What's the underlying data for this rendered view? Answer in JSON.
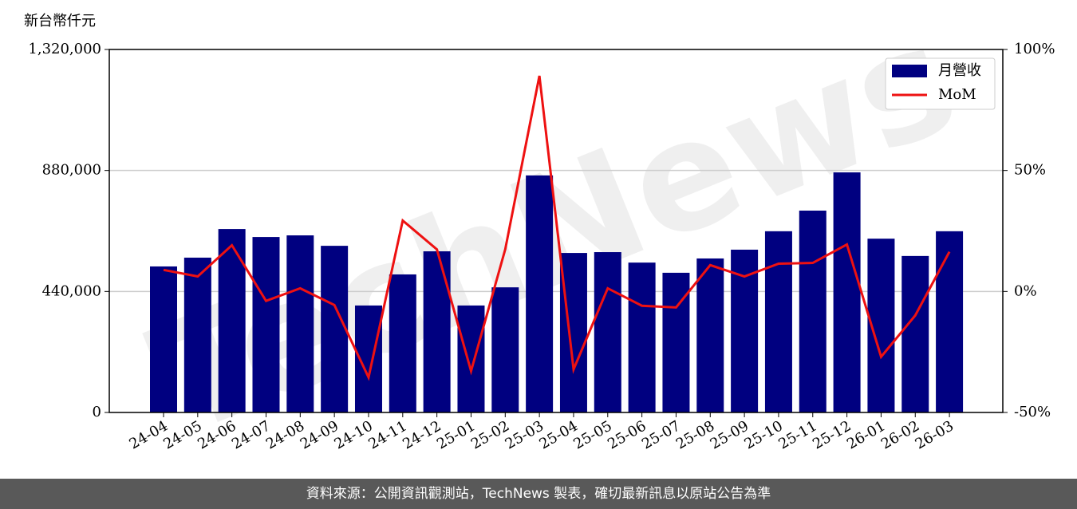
{
  "chart_data": {
    "type": "bar",
    "y_label": "新台幣仟元",
    "watermark": "TechNews",
    "footer": "資料來源：公開資訊觀測站，TechNews 製表，確切最新訊息以原站公告為準",
    "categories": [
      "24-04",
      "24-05",
      "24-06",
      "24-07",
      "24-08",
      "24-09",
      "24-10",
      "24-11",
      "24-12",
      "25-01",
      "25-02",
      "25-03",
      "25-04",
      "25-05",
      "25-06",
      "25-07",
      "25-08",
      "25-09",
      "25-10",
      "25-11",
      "25-12",
      "26-01",
      "26-02",
      "26-03"
    ],
    "series": [
      {
        "name": "月營收",
        "type": "bar",
        "color": "#000080",
        "values": [
          531000,
          563000,
          667000,
          638000,
          644000,
          606000,
          389000,
          502000,
          586000,
          389000,
          455000,
          862000,
          580000,
          583000,
          545000,
          508000,
          560000,
          592000,
          659000,
          734000,
          873000,
          632000,
          569000,
          659000
        ]
      },
      {
        "name": "MoM",
        "type": "line",
        "axis": "y2",
        "color": "#ee1111",
        "values": [
          8.9,
          6.2,
          19.1,
          -3.9,
          1.3,
          -5.6,
          -35.5,
          29.3,
          17.4,
          -32.9,
          17.4,
          89.1,
          -32.2,
          1.3,
          -5.9,
          -6.6,
          10.9,
          6.2,
          11.5,
          11.8,
          19.4,
          -27.0,
          -9.9,
          16.4
        ]
      }
    ],
    "ylim": [
      0,
      1320000
    ],
    "yticks": [
      0,
      {
        "value": 440000,
        "label": "440,000"
      },
      {
        "value": 880000,
        "label": "880,000"
      },
      {
        "value": 1320000,
        "label": "1,320,000"
      }
    ],
    "y2lim": [
      -50,
      100
    ],
    "y2ticks": [
      {
        "value": -50,
        "label": "-50%"
      },
      {
        "value": 0,
        "label": "0%"
      },
      {
        "value": 50,
        "label": "50%"
      },
      {
        "value": 100,
        "label": "100%"
      }
    ],
    "grid": true,
    "legend": "upper right"
  }
}
